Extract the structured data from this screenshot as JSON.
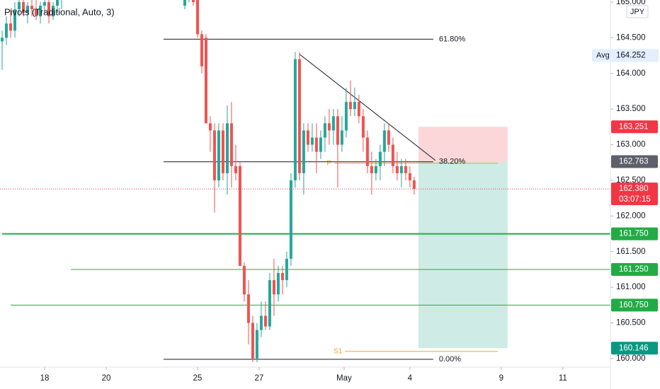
{
  "chart_data": {
    "type": "candlestick",
    "title": "Pivots (Traditional, Auto, 3)",
    "currency": "JPY",
    "up_color": "#26a69a",
    "down_color": "#ef5350",
    "x": [
      0,
      1,
      2,
      3,
      4,
      5,
      6,
      7,
      8,
      9,
      10,
      11,
      12,
      13,
      14,
      43,
      44,
      45,
      46,
      47,
      48,
      49,
      50,
      51,
      52,
      53,
      54,
      55,
      56,
      57,
      58,
      59,
      60,
      61,
      62,
      63,
      64,
      65,
      66,
      67,
      68,
      69,
      70,
      71,
      72,
      73,
      74,
      75,
      76,
      77,
      78,
      79,
      80,
      81,
      82,
      83,
      84,
      85,
      86,
      87,
      88,
      89,
      90,
      91,
      92,
      93,
      94,
      95,
      96,
      97
    ],
    "open": [
      164.45,
      164.5,
      164.7,
      164.6,
      164.9,
      165.0,
      164.85,
      164.95,
      164.9,
      164.8,
      164.95,
      165.0,
      164.8,
      164.95,
      165.05,
      164.95,
      165.2,
      165.3,
      165.1,
      164.55,
      164.5,
      163.3,
      163.2,
      162.5,
      163.2,
      162.6,
      163.3,
      162.7,
      162.7,
      161.3,
      160.9,
      160.5,
      160.0,
      160.4,
      160.6,
      160.45,
      161.1,
      160.9,
      161.2,
      161.1,
      161.4,
      162.5,
      164.2,
      162.6,
      163.2,
      163.0,
      163.1,
      162.9,
      163.1,
      163.3,
      163.2,
      163.4,
      163.0,
      163.2,
      163.6,
      163.5,
      163.6,
      163.4,
      163.1,
      162.7,
      162.6,
      162.7,
      162.9,
      163.2,
      163.0,
      162.7,
      162.6,
      162.7,
      162.6,
      162.5
    ],
    "high": [
      164.6,
      164.8,
      164.9,
      165.0,
      165.1,
      165.1,
      165.0,
      165.1,
      165.05,
      165.0,
      165.1,
      165.1,
      165.0,
      165.1,
      165.2,
      165.3,
      165.4,
      165.4,
      165.2,
      164.6,
      164.55,
      163.4,
      163.3,
      163.3,
      163.3,
      163.55,
      163.6,
      163.0,
      162.75,
      161.35,
      161.1,
      160.6,
      160.5,
      160.8,
      160.8,
      161.2,
      161.4,
      161.3,
      161.3,
      161.5,
      162.6,
      164.3,
      164.3,
      163.3,
      163.3,
      163.3,
      163.3,
      163.2,
      163.4,
      163.5,
      163.5,
      163.5,
      163.4,
      163.8,
      163.9,
      163.8,
      163.7,
      163.5,
      163.2,
      162.9,
      162.8,
      163.0,
      163.3,
      163.3,
      163.1,
      162.9,
      162.8,
      162.8,
      162.7,
      162.55
    ],
    "low": [
      164.05,
      164.4,
      164.5,
      164.5,
      164.8,
      164.8,
      164.7,
      164.8,
      164.75,
      164.7,
      164.85,
      164.7,
      164.75,
      164.85,
      164.9,
      164.9,
      165.0,
      164.95,
      164.5,
      164.0,
      163.3,
      162.9,
      162.05,
      162.4,
      162.5,
      162.3,
      162.4,
      162.5,
      161.3,
      160.8,
      160.2,
      159.95,
      159.95,
      160.3,
      160.4,
      160.4,
      160.6,
      160.8,
      160.9,
      161.0,
      161.3,
      162.4,
      162.5,
      162.3,
      162.9,
      162.9,
      162.6,
      162.8,
      162.9,
      163.0,
      163.0,
      162.4,
      162.9,
      163.1,
      163.4,
      163.4,
      163.3,
      162.9,
      162.6,
      162.3,
      162.5,
      162.5,
      162.7,
      162.9,
      162.6,
      162.5,
      162.4,
      162.5,
      162.4,
      162.3
    ],
    "close": [
      164.5,
      164.7,
      164.6,
      164.9,
      165.0,
      164.85,
      164.95,
      164.9,
      164.8,
      164.95,
      165.0,
      164.8,
      164.95,
      165.05,
      165.1,
      165.2,
      165.3,
      165.0,
      164.55,
      164.1,
      163.3,
      163.2,
      162.5,
      163.2,
      162.6,
      163.3,
      162.7,
      162.6,
      161.3,
      160.9,
      160.5,
      160.0,
      160.4,
      160.6,
      160.45,
      161.1,
      160.9,
      161.2,
      161.1,
      161.4,
      162.5,
      164.2,
      162.6,
      163.2,
      163.0,
      163.1,
      162.9,
      163.1,
      163.3,
      163.2,
      163.4,
      163.0,
      163.2,
      163.6,
      163.5,
      163.6,
      163.4,
      163.1,
      162.7,
      162.6,
      162.7,
      162.9,
      163.2,
      163.0,
      162.7,
      162.6,
      162.7,
      162.6,
      162.5,
      162.38
    ],
    "xlim": [
      -0.5,
      143.2
    ],
    "ylim": [
      159.93,
      165.03
    ],
    "xticks": [
      {
        "value": 10,
        "label": "18"
      },
      {
        "value": 24.5,
        "label": "20"
      },
      {
        "value": 46,
        "label": "25"
      },
      {
        "value": 60.5,
        "label": "27"
      },
      {
        "value": 80.5,
        "label": "May"
      },
      {
        "value": 96,
        "label": "4"
      },
      {
        "value": 117.5,
        "label": "9"
      },
      {
        "value": 132,
        "label": "11"
      }
    ],
    "yticks": [
      {
        "value": 160,
        "label": "160.000"
      },
      {
        "value": 160.5,
        "label": "160.500"
      },
      {
        "value": 161,
        "label": "161.000"
      },
      {
        "value": 161.5,
        "label": "161.500"
      },
      {
        "value": 162,
        "label": "162.000"
      },
      {
        "value": 162.5,
        "label": "162.500"
      },
      {
        "value": 163,
        "label": "163.000"
      },
      {
        "value": 163.5,
        "label": "163.500"
      },
      {
        "value": 164,
        "label": "164.000"
      },
      {
        "value": 164.5,
        "label": "164.500"
      },
      {
        "value": 165,
        "label": "165.000"
      }
    ],
    "fib_levels": [
      {
        "value": 164.48,
        "label": "61.80%"
      },
      {
        "value": 162.76,
        "label": "38.20%"
      },
      {
        "value": 159.99,
        "label": "0.00%"
      }
    ],
    "fib_range": [
      38,
      101.5
    ],
    "pivot_lines": [
      {
        "value": 161.75,
        "start": 0,
        "color": "#22ab45"
      },
      {
        "value": 161.25,
        "start": 16.2,
        "color": "#22ab45"
      },
      {
        "value": 160.75,
        "start": 2,
        "color": "#22ab45"
      }
    ],
    "pivot_marks": [
      {
        "value": 162.74,
        "label": "P",
        "range": [
          78.2,
          116.7
        ]
      },
      {
        "value": 160.1,
        "label": "S1",
        "range": [
          80.7,
          116.7
        ]
      }
    ],
    "trendline": {
      "x": [
        70,
        102
      ],
      "y": [
        164.27,
        162.78
      ]
    },
    "position": {
      "entry": 162.763,
      "stop": 163.251,
      "target": 160.146,
      "range": [
        98,
        119
      ]
    },
    "avg": {
      "label": "Avg",
      "value": {
        "value": 164.252,
        "label": "164.252"
      }
    },
    "countdown": "03:07:15",
    "price_labels": [
      {
        "value": 163.251,
        "label": "163.251",
        "color": "#f23645"
      },
      {
        "value": 162.763,
        "label": "162.763",
        "color": "#5d606b"
      },
      {
        "value": 162.38,
        "label": "162.380",
        "color": "#f23645"
      },
      {
        "value": 161.75,
        "label": "161.750",
        "color": "#22ab45"
      },
      {
        "value": 161.25,
        "label": "161.250",
        "color": "#22ab45"
      },
      {
        "value": 160.75,
        "label": "160.750",
        "color": "#22ab45"
      },
      {
        "value": 160.146,
        "label": "160.146",
        "color": "#089981"
      }
    ]
  }
}
